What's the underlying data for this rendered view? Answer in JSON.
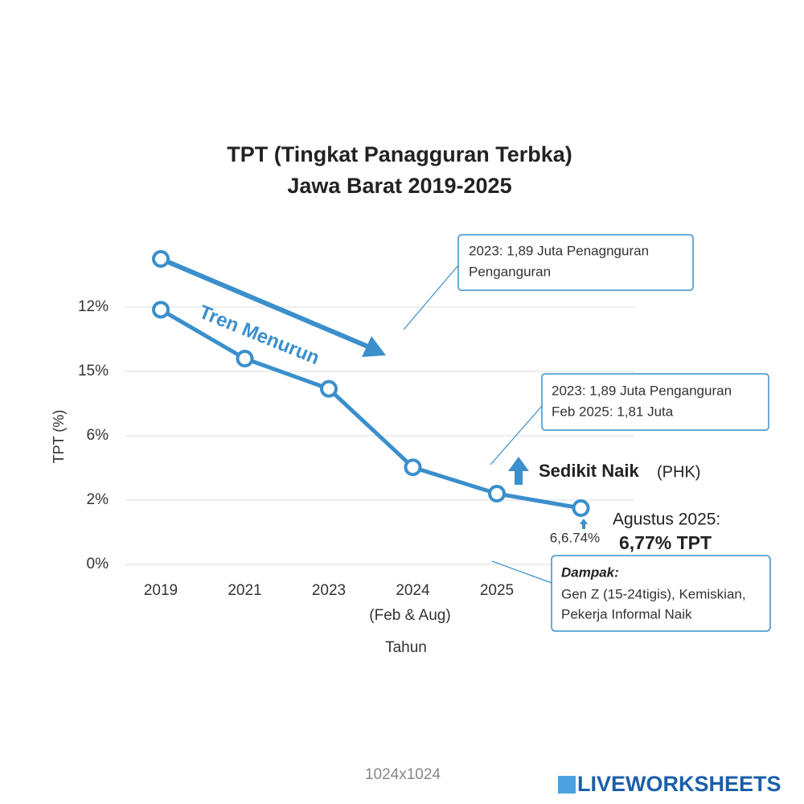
{
  "chart_data": {
    "type": "line",
    "title": [
      "TPT (Tingkat Panagguran Terbka)",
      "Jawa Barat 2019-2025"
    ],
    "y_label": "TPT (%)",
    "x_label": "Tahun",
    "categories": [
      "2019",
      "2021",
      "2023",
      "2024",
      "2025",
      null
    ],
    "x_note": "(Feb & Aug)",
    "y_categories": [
      "0%",
      "2%",
      "6%",
      "15%",
      "12%"
    ],
    "grid": true,
    "series": [
      {
        "color": "#3a8fcc",
        "values": [
          3.96,
          3.2,
          2.73,
          1.51,
          1.1,
          0.875
        ]
      }
    ],
    "trend_label": "Tren Menurun",
    "annotations": {
      "box1": [
        "2023: 1,89 Juta Penagnguran",
        "Penganguran"
      ],
      "box2": [
        "2023: 1,89 Juta Penganguran",
        "Feb 2025: 1,81 Juta"
      ],
      "rise": "Sedikit Naik",
      "rise_note": "(PHK)",
      "last_label": "6,6.74%",
      "aug": "Agustus 2025:",
      "aug_value": "6,77% TPT",
      "impact_title": "Dampak:",
      "impact": [
        "Gen Z (15-24tigis), Kemiskian,",
        "Pekerja Informal Naik"
      ]
    },
    "footer": "1024x1024",
    "brand": "LIVEWORKSHEETS"
  }
}
